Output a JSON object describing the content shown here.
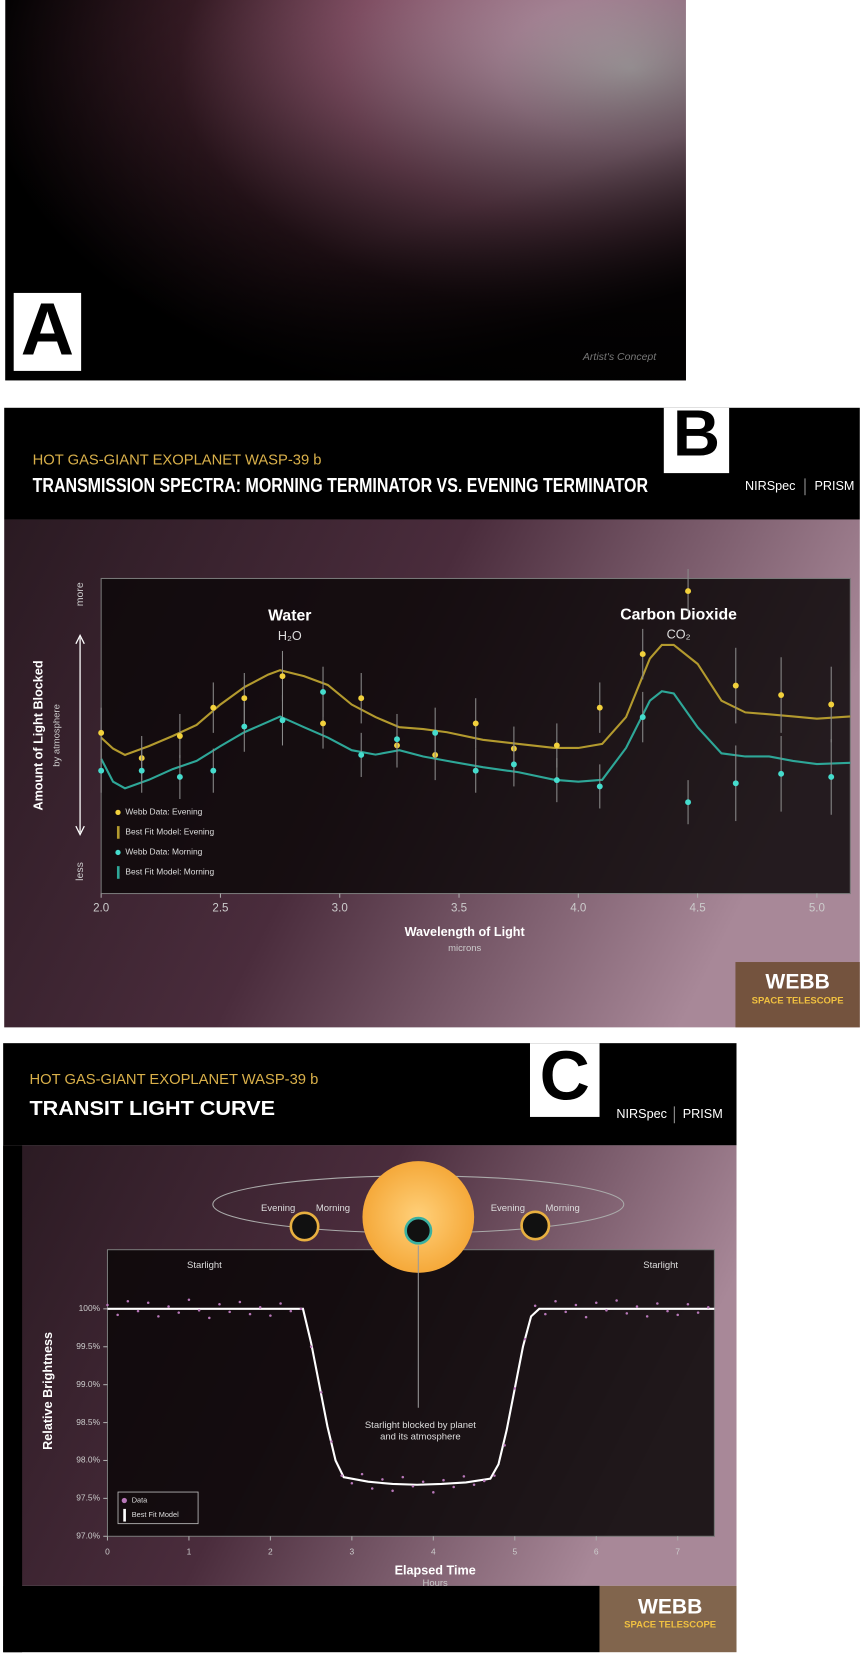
{
  "panel_a": {
    "label": "A",
    "caption": "Artist's Concept"
  },
  "chart_data": [
    {
      "type": "scatter",
      "panel_label": "B",
      "subtitle": "HOT GAS-GIANT EXOPLANET WASP-39 b",
      "title": "TRANSMISSION SPECTRA: MORNING TERMINATOR VS. EVENING TERMINATOR",
      "instrument": "NIRSpec",
      "mode": "PRISM",
      "logo": {
        "name": "WEBB",
        "tagline": "SPACE TELESCOPE"
      },
      "x_label": "Wavelength of Light",
      "x_unit": "microns",
      "y_label": "Amount of Light Blocked",
      "y_unit": "by atmosphere",
      "annotations": [
        {
          "text": "Water",
          "formula": "H₂O"
        },
        {
          "text": "Carbon Dioxide",
          "formula": "CO₂"
        }
      ],
      "xlim": [
        2.0,
        5.14
      ],
      "xticks": [
        {
          "value": 2,
          "label": "2.0"
        },
        2.5,
        {
          "value": 3,
          "label": "3.0"
        },
        3.5,
        {
          "value": 4,
          "label": "4.0"
        },
        4.5,
        {
          "value": 5,
          "label": "5.0"
        }
      ],
      "ylim": [
        0,
        1
      ],
      "yticks": [
        {
          "value": 0.07,
          "label": "less"
        },
        {
          "value": 0.95,
          "label": "more"
        }
      ],
      "legend": "lower left",
      "series": [
        {
          "name": "Webb Data: Evening",
          "mark": "point",
          "color": "#f2d13c",
          "x": [
            2.0,
            2.17,
            2.33,
            2.47,
            2.6,
            2.76,
            2.93,
            3.09,
            3.24,
            3.4,
            3.57,
            3.73,
            3.91,
            4.09,
            4.27,
            4.46,
            4.66,
            4.85,
            5.06
          ],
          "values": [
            0.51,
            0.43,
            0.5,
            0.59,
            0.62,
            0.69,
            0.54,
            0.62,
            0.47,
            0.44,
            0.54,
            0.46,
            0.47,
            0.59,
            0.76,
            0.96,
            0.66,
            0.63,
            0.6
          ],
          "errors": [
            0.08,
            0.07,
            0.07,
            0.08,
            0.08,
            0.08,
            0.08,
            0.08,
            0.07,
            0.08,
            0.08,
            0.07,
            0.07,
            0.08,
            0.08,
            0.07,
            0.12,
            0.12,
            0.12
          ]
        },
        {
          "name": "Best Fit Model: Evening",
          "mark": "line",
          "color": "#b39a2e",
          "x": [
            2.0,
            2.05,
            2.1,
            2.2,
            2.3,
            2.4,
            2.5,
            2.6,
            2.7,
            2.75,
            2.85,
            2.95,
            3.05,
            3.15,
            3.25,
            3.35,
            3.45,
            3.6,
            3.75,
            3.9,
            4.0,
            4.1,
            4.2,
            4.3,
            4.35,
            4.4,
            4.5,
            4.6,
            4.7,
            4.8,
            4.9,
            5.0,
            5.14
          ],
          "values": [
            0.495,
            0.46,
            0.44,
            0.468,
            0.5,
            0.535,
            0.6,
            0.655,
            0.695,
            0.709,
            0.69,
            0.662,
            0.6,
            0.56,
            0.528,
            0.522,
            0.512,
            0.488,
            0.475,
            0.462,
            0.462,
            0.475,
            0.56,
            0.746,
            0.789,
            0.789,
            0.729,
            0.612,
            0.575,
            0.569,
            0.562,
            0.555,
            0.562
          ]
        },
        {
          "name": "Webb Data: Morning",
          "mark": "point",
          "color": "#45dccd",
          "x": [
            2.0,
            2.17,
            2.33,
            2.47,
            2.6,
            2.76,
            2.93,
            3.09,
            3.24,
            3.4,
            3.57,
            3.73,
            3.91,
            4.09,
            4.27,
            4.46,
            4.66,
            4.85,
            5.06
          ],
          "values": [
            0.39,
            0.39,
            0.37,
            0.39,
            0.53,
            0.55,
            0.64,
            0.44,
            0.49,
            0.51,
            0.39,
            0.41,
            0.36,
            0.34,
            0.56,
            0.29,
            0.35,
            0.38,
            0.37
          ],
          "errors": [
            0.07,
            0.07,
            0.07,
            0.07,
            0.08,
            0.08,
            0.08,
            0.07,
            0.08,
            0.08,
            0.07,
            0.07,
            0.07,
            0.07,
            0.08,
            0.07,
            0.12,
            0.12,
            0.12
          ]
        },
        {
          "name": "Best Fit Model: Morning",
          "mark": "line",
          "color": "#2ea798",
          "x": [
            2.0,
            2.05,
            2.1,
            2.2,
            2.3,
            2.4,
            2.5,
            2.6,
            2.7,
            2.75,
            2.85,
            2.95,
            3.05,
            3.15,
            3.25,
            3.35,
            3.45,
            3.6,
            3.75,
            3.9,
            4.0,
            4.1,
            4.2,
            4.3,
            4.35,
            4.4,
            4.5,
            4.6,
            4.7,
            4.8,
            4.9,
            5.0,
            5.14
          ],
          "values": [
            0.428,
            0.355,
            0.334,
            0.361,
            0.395,
            0.421,
            0.468,
            0.512,
            0.545,
            0.562,
            0.528,
            0.495,
            0.455,
            0.441,
            0.455,
            0.435,
            0.421,
            0.401,
            0.385,
            0.361,
            0.355,
            0.361,
            0.462,
            0.612,
            0.642,
            0.635,
            0.528,
            0.445,
            0.435,
            0.435,
            0.421,
            0.411,
            0.415
          ]
        }
      ]
    },
    {
      "type": "scatter",
      "panel_label": "C",
      "subtitle": "HOT GAS-GIANT EXOPLANET WASP-39 b",
      "title": "TRANSIT LIGHT CURVE",
      "instrument": "NIRSpec",
      "mode": "PRISM",
      "logo": {
        "name": "WEBB",
        "tagline": "SPACE TELESCOPE"
      },
      "x_label": "Elapsed Time",
      "x_unit": "Hours",
      "y_label": "Relative Brightness",
      "annotations": [
        "Starlight",
        "Starlight",
        "Starlight blocked by planet",
        "and its atmosphere",
        "Evening",
        "Morning",
        "Evening",
        "Morning"
      ],
      "xlim": [
        0,
        7.45
      ],
      "xticks": [
        0,
        1,
        2,
        3,
        4,
        5,
        6,
        7
      ],
      "ylim": [
        97.0,
        100.78
      ],
      "yticks": [
        {
          "value": 100,
          "label": "100%"
        },
        {
          "value": 99.5,
          "label": "99.5%"
        },
        {
          "value": 99,
          "label": "99.0%"
        },
        {
          "value": 98.5,
          "label": "98.5%"
        },
        {
          "value": 98,
          "label": "98.0%"
        },
        {
          "value": 97.5,
          "label": "97.5%"
        },
        {
          "value": 97,
          "label": "97.0%"
        }
      ],
      "legend": "lower left",
      "series": [
        {
          "name": "Data",
          "mark": "point",
          "color": "#b777b8",
          "x": [
            0,
            0.125,
            0.25,
            0.375,
            0.5,
            0.625,
            0.75,
            0.875,
            1.0,
            1.125,
            1.25,
            1.375,
            1.5,
            1.625,
            1.75,
            1.875,
            2.0,
            2.125,
            2.25,
            2.375,
            2.5,
            2.625,
            2.75,
            2.875,
            3.0,
            3.125,
            3.25,
            3.375,
            3.5,
            3.625,
            3.75,
            3.875,
            4.0,
            4.125,
            4.25,
            4.375,
            4.5,
            4.625,
            4.75,
            4.875,
            5.0,
            5.125,
            5.25,
            5.375,
            5.5,
            5.625,
            5.75,
            5.875,
            6.0,
            6.125,
            6.25,
            6.375,
            6.5,
            6.625,
            6.75,
            6.875,
            7.0,
            7.125,
            7.25,
            7.375
          ],
          "values": [
            100.05,
            99.92,
            100.1,
            99.97,
            100.08,
            99.9,
            100.03,
            99.95,
            100.12,
            99.98,
            99.88,
            100.06,
            99.96,
            100.09,
            99.93,
            100.02,
            99.91,
            100.07,
            99.97,
            100.0,
            99.5,
            98.9,
            98.25,
            97.8,
            97.7,
            97.82,
            97.63,
            97.75,
            97.6,
            97.78,
            97.66,
            97.72,
            97.58,
            97.74,
            97.65,
            97.79,
            97.68,
            97.73,
            97.8,
            98.2,
            98.95,
            99.6,
            100.04,
            99.93,
            100.1,
            99.96,
            100.05,
            99.89,
            100.08,
            99.98,
            100.11,
            99.94,
            100.03,
            99.9,
            100.07,
            99.97,
            99.92,
            100.06,
            99.95,
            100.02
          ]
        },
        {
          "name": "Best Fit Model",
          "mark": "line",
          "color": "#ffffff",
          "x": [
            0,
            2.4,
            2.5,
            2.6,
            2.7,
            2.8,
            2.9,
            3.2,
            3.5,
            3.8,
            4.1,
            4.4,
            4.7,
            4.8,
            4.9,
            5.0,
            5.1,
            5.2,
            5.3,
            7.45
          ],
          "values": [
            100,
            100,
            99.55,
            99.0,
            98.45,
            98.0,
            97.78,
            97.72,
            97.69,
            97.68,
            97.69,
            97.71,
            97.76,
            97.95,
            98.4,
            98.95,
            99.5,
            99.9,
            100,
            100
          ]
        }
      ]
    }
  ]
}
